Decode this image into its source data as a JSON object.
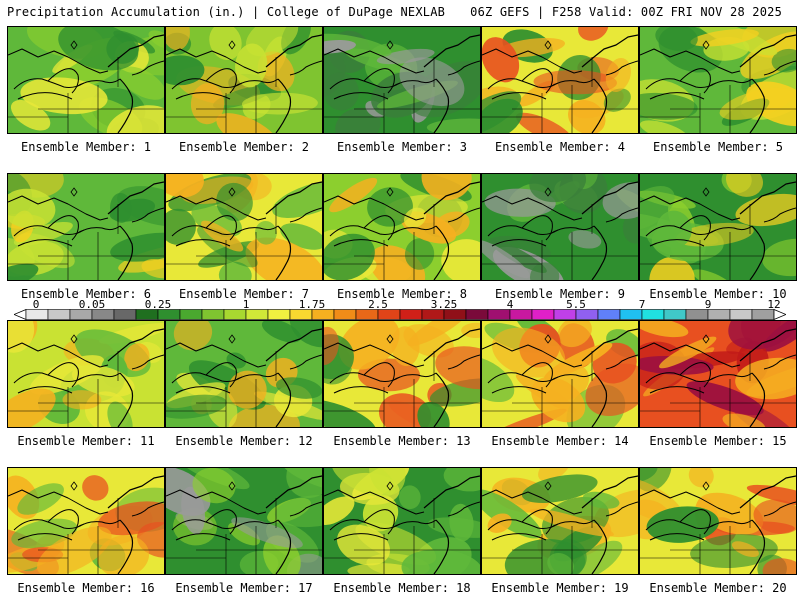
{
  "header": {
    "title_left": "Precipitation Accumulation (in.) | College of DuPage NEXLAB",
    "title_right": "06Z GEFS | F258 Valid: 00Z FRI NOV 28 2025"
  },
  "caption_prefix": "Ensemble Member: ",
  "members": [
    {
      "label": "Ensemble Member: 1",
      "palette": [
        "#5fb83a",
        "#8ccf2e",
        "#2f8f2f",
        "#e8e838"
      ]
    },
    {
      "label": "Ensemble Member: 2",
      "palette": [
        "#7fc430",
        "#c9e233",
        "#2f8f2f",
        "#f5b020"
      ]
    },
    {
      "label": "Ensemble Member: 3",
      "palette": [
        "#2f8f2f",
        "#3a7f3a",
        "#5fb83a",
        "#9a9a9a"
      ]
    },
    {
      "label": "Ensemble Member: 4",
      "palette": [
        "#e8e838",
        "#f5b020",
        "#2f8f2f",
        "#e85020"
      ]
    },
    {
      "label": "Ensemble Member: 5",
      "palette": [
        "#5fb83a",
        "#2f8f2f",
        "#c9e233",
        "#f5d020"
      ]
    },
    {
      "label": "Ensemble Member: 6",
      "palette": [
        "#5fb83a",
        "#2f8f2f",
        "#c9e233",
        "#f5d020"
      ]
    },
    {
      "label": "Ensemble Member: 7",
      "palette": [
        "#e8e838",
        "#f5b020",
        "#5fb83a",
        "#2f8f2f"
      ]
    },
    {
      "label": "Ensemble Member: 8",
      "palette": [
        "#8ccf2e",
        "#e8e838",
        "#2f8f2f",
        "#f5b020"
      ]
    },
    {
      "label": "Ensemble Member: 9",
      "palette": [
        "#2f8f2f",
        "#3a7f3a",
        "#5fb83a",
        "#9a9a9a"
      ]
    },
    {
      "label": "Ensemble Member: 10",
      "palette": [
        "#2f8f2f",
        "#5fb83a",
        "#8ccf2e",
        "#f5d020"
      ]
    },
    {
      "label": "Ensemble Member: 11",
      "palette": [
        "#c9e233",
        "#e8e838",
        "#5fb83a",
        "#f5b020"
      ]
    },
    {
      "label": "Ensemble Member: 12",
      "palette": [
        "#5fb83a",
        "#2f8f2f",
        "#e8e838",
        "#f5b020"
      ]
    },
    {
      "label": "Ensemble Member: 13",
      "palette": [
        "#e8e838",
        "#f5b020",
        "#2f8f2f",
        "#e85020"
      ]
    },
    {
      "label": "Ensemble Member: 14",
      "palette": [
        "#e8e838",
        "#f5b020",
        "#5fb83a",
        "#e85020"
      ]
    },
    {
      "label": "Ensemble Member: 15",
      "palette": [
        "#e85020",
        "#f5b020",
        "#c01818",
        "#9c1040"
      ]
    },
    {
      "label": "Ensemble Member: 16",
      "palette": [
        "#e8e838",
        "#f5b020",
        "#5fb83a",
        "#e85020"
      ]
    },
    {
      "label": "Ensemble Member: 17",
      "palette": [
        "#2f8f2f",
        "#5fb83a",
        "#8ccf2e",
        "#9a9a9a"
      ]
    },
    {
      "label": "Ensemble Member: 18",
      "palette": [
        "#2f8f2f",
        "#5fb83a",
        "#c9e233",
        "#e8e838"
      ]
    },
    {
      "label": "Ensemble Member: 19",
      "palette": [
        "#e8e838",
        "#f5b020",
        "#5fb83a",
        "#2f8f2f"
      ]
    },
    {
      "label": "Ensemble Member: 20",
      "palette": [
        "#e8e838",
        "#f5b020",
        "#2f8f2f",
        "#e85020"
      ]
    }
  ],
  "legend": {
    "labels": [
      "0",
      "0.05",
      "0.25",
      "1",
      "1.75",
      "2.5",
      "3.25",
      "4",
      "5.5",
      "7",
      "9",
      "12"
    ],
    "colors": [
      "#e8e8e8",
      "#c8c8c8",
      "#a8a8a8",
      "#888888",
      "#686868",
      "#1f6f1f",
      "#2f8f2f",
      "#4aa82f",
      "#7fc430",
      "#a8d830",
      "#d0e838",
      "#f0f040",
      "#f8d830",
      "#f5b020",
      "#f08c18",
      "#e86818",
      "#e04418",
      "#d02018",
      "#b01818",
      "#901018",
      "#7a0a3a",
      "#a01070",
      "#c818a0",
      "#e020c8",
      "#c040e8",
      "#9060f0",
      "#6080f8",
      "#20c0f0",
      "#20e0e0",
      "#40c8c8",
      "#909090",
      "#b0b0b0",
      "#c8c8c8",
      "#a0a0a0"
    ]
  }
}
